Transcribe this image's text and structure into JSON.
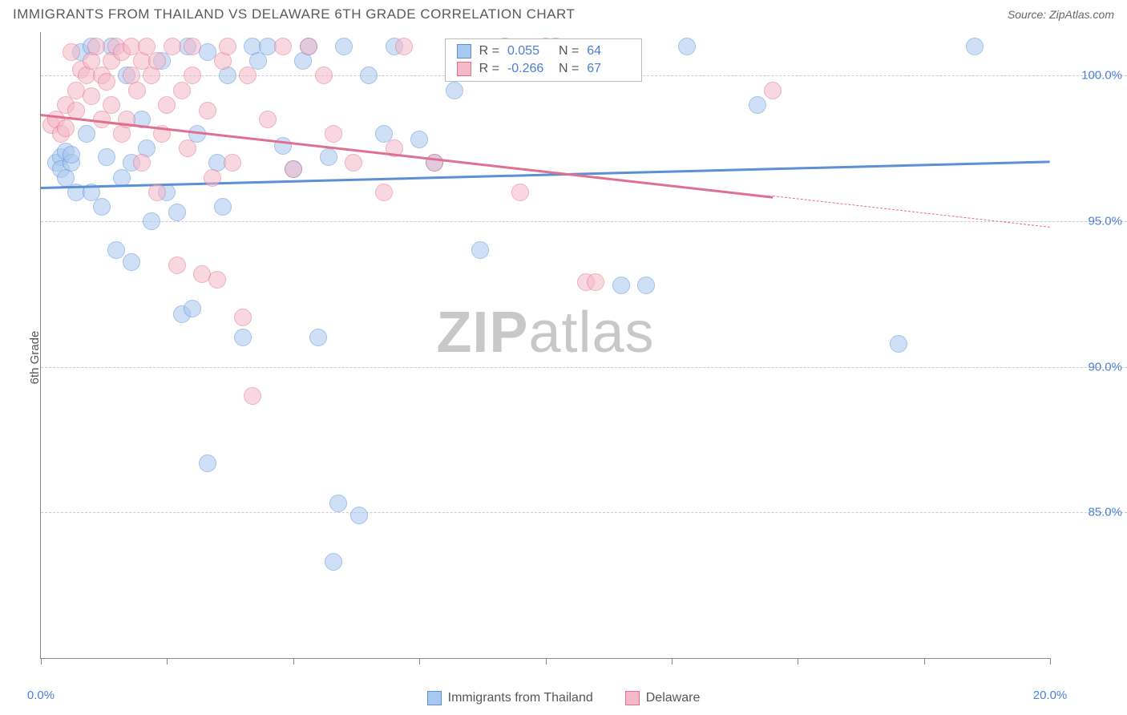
{
  "header": {
    "title": "IMMIGRANTS FROM THAILAND VS DELAWARE 6TH GRADE CORRELATION CHART",
    "source_prefix": "Source: ",
    "source": "ZipAtlas.com"
  },
  "watermark": {
    "zip": "ZIP",
    "atlas": "atlas"
  },
  "chart": {
    "type": "scatter",
    "ylabel": "6th Grade",
    "xlim": [
      0,
      20
    ],
    "ylim": [
      80,
      101.5
    ],
    "xticks": [
      0,
      2.5,
      5,
      7.5,
      10,
      12.5,
      15,
      17.5,
      20
    ],
    "xtick_labels": {
      "0": "0.0%",
      "20": "20.0%"
    },
    "yticks": [
      85,
      90,
      95,
      100
    ],
    "ytick_labels": {
      "85": "85.0%",
      "90": "90.0%",
      "95": "95.0%",
      "100": "100.0%"
    },
    "grid_color": "#cccccc",
    "marker_radius": 11,
    "series": [
      {
        "name": "Immigrants from Thailand",
        "color_fill": "#a8c8f0",
        "color_stroke": "#5b8fd6",
        "R": "0.055",
        "N": "64",
        "trend": {
          "x1": 0,
          "y1": 96.2,
          "x2": 20,
          "y2": 97.1,
          "solid_until_x": 20
        },
        "points": [
          [
            0.3,
            97.0
          ],
          [
            0.4,
            97.2
          ],
          [
            0.4,
            96.8
          ],
          [
            0.5,
            97.4
          ],
          [
            0.5,
            96.5
          ],
          [
            0.6,
            97.0
          ],
          [
            0.6,
            97.3
          ],
          [
            0.7,
            96.0
          ],
          [
            0.8,
            100.8
          ],
          [
            0.9,
            98.0
          ],
          [
            1.0,
            101.0
          ],
          [
            1.0,
            96.0
          ],
          [
            1.2,
            95.5
          ],
          [
            1.3,
            97.2
          ],
          [
            1.4,
            101.0
          ],
          [
            1.5,
            94.0
          ],
          [
            1.6,
            96.5
          ],
          [
            1.7,
            100.0
          ],
          [
            1.8,
            97.0
          ],
          [
            1.8,
            93.6
          ],
          [
            2.0,
            98.5
          ],
          [
            2.1,
            97.5
          ],
          [
            2.2,
            95.0
          ],
          [
            2.4,
            100.5
          ],
          [
            2.5,
            96.0
          ],
          [
            2.7,
            95.3
          ],
          [
            2.8,
            91.8
          ],
          [
            2.9,
            101.0
          ],
          [
            3.0,
            92.0
          ],
          [
            3.1,
            98.0
          ],
          [
            3.3,
            86.7
          ],
          [
            3.3,
            100.8
          ],
          [
            3.5,
            97.0
          ],
          [
            3.6,
            95.5
          ],
          [
            3.7,
            100.0
          ],
          [
            4.0,
            91.0
          ],
          [
            4.2,
            101.0
          ],
          [
            4.3,
            100.5
          ],
          [
            4.5,
            101.0
          ],
          [
            4.8,
            97.6
          ],
          [
            5.0,
            96.8
          ],
          [
            5.2,
            100.5
          ],
          [
            5.3,
            101.0
          ],
          [
            5.5,
            91.0
          ],
          [
            5.7,
            97.2
          ],
          [
            5.8,
            83.3
          ],
          [
            5.9,
            85.3
          ],
          [
            6.0,
            101.0
          ],
          [
            6.3,
            84.9
          ],
          [
            6.5,
            100.0
          ],
          [
            6.8,
            98.0
          ],
          [
            7.0,
            101.0
          ],
          [
            7.5,
            97.8
          ],
          [
            7.8,
            97.0
          ],
          [
            8.2,
            99.5
          ],
          [
            8.7,
            94.0
          ],
          [
            9.2,
            101.0
          ],
          [
            10.2,
            101.0
          ],
          [
            11.5,
            92.8
          ],
          [
            12.0,
            92.8
          ],
          [
            12.8,
            101.0
          ],
          [
            14.2,
            99.0
          ],
          [
            17.0,
            90.8
          ],
          [
            18.5,
            101.0
          ]
        ]
      },
      {
        "name": "Delaware",
        "color_fill": "#f5b8c8",
        "color_stroke": "#e0708f",
        "R": "-0.266",
        "N": "67",
        "trend": {
          "x1": 0,
          "y1": 98.7,
          "x2": 20,
          "y2": 94.8,
          "solid_until_x": 14.5
        },
        "points": [
          [
            0.2,
            98.3
          ],
          [
            0.3,
            98.5
          ],
          [
            0.4,
            98.0
          ],
          [
            0.5,
            99.0
          ],
          [
            0.5,
            98.2
          ],
          [
            0.6,
            100.8
          ],
          [
            0.7,
            99.5
          ],
          [
            0.7,
            98.8
          ],
          [
            0.8,
            100.2
          ],
          [
            0.9,
            100.0
          ],
          [
            1.0,
            99.3
          ],
          [
            1.0,
            100.5
          ],
          [
            1.1,
            101.0
          ],
          [
            1.2,
            100.0
          ],
          [
            1.2,
            98.5
          ],
          [
            1.3,
            99.8
          ],
          [
            1.4,
            100.5
          ],
          [
            1.4,
            99.0
          ],
          [
            1.5,
            101.0
          ],
          [
            1.6,
            100.8
          ],
          [
            1.6,
            98.0
          ],
          [
            1.7,
            98.5
          ],
          [
            1.8,
            100.0
          ],
          [
            1.8,
            101.0
          ],
          [
            1.9,
            99.5
          ],
          [
            2.0,
            100.5
          ],
          [
            2.0,
            97.0
          ],
          [
            2.1,
            101.0
          ],
          [
            2.2,
            100.0
          ],
          [
            2.3,
            96.0
          ],
          [
            2.3,
            100.5
          ],
          [
            2.4,
            98.0
          ],
          [
            2.5,
            99.0
          ],
          [
            2.6,
            101.0
          ],
          [
            2.7,
            93.5
          ],
          [
            2.8,
            99.5
          ],
          [
            2.9,
            97.5
          ],
          [
            3.0,
            100.0
          ],
          [
            3.0,
            101.0
          ],
          [
            3.2,
            93.2
          ],
          [
            3.3,
            98.8
          ],
          [
            3.4,
            96.5
          ],
          [
            3.5,
            93.0
          ],
          [
            3.6,
            100.5
          ],
          [
            3.7,
            101.0
          ],
          [
            3.8,
            97.0
          ],
          [
            4.0,
            91.7
          ],
          [
            4.1,
            100.0
          ],
          [
            4.2,
            89.0
          ],
          [
            4.5,
            98.5
          ],
          [
            4.8,
            101.0
          ],
          [
            5.0,
            96.8
          ],
          [
            5.3,
            101.0
          ],
          [
            5.6,
            100.0
          ],
          [
            5.8,
            98.0
          ],
          [
            6.2,
            97.0
          ],
          [
            6.8,
            96.0
          ],
          [
            7.0,
            97.5
          ],
          [
            7.2,
            101.0
          ],
          [
            7.8,
            97.0
          ],
          [
            8.5,
            100.5
          ],
          [
            9.5,
            96.0
          ],
          [
            10.0,
            101.0
          ],
          [
            10.3,
            100.8
          ],
          [
            10.8,
            92.9
          ],
          [
            11.0,
            92.9
          ],
          [
            14.5,
            99.5
          ]
        ]
      }
    ]
  },
  "stat_box": {
    "R_label": "R =",
    "N_label": "N ="
  }
}
